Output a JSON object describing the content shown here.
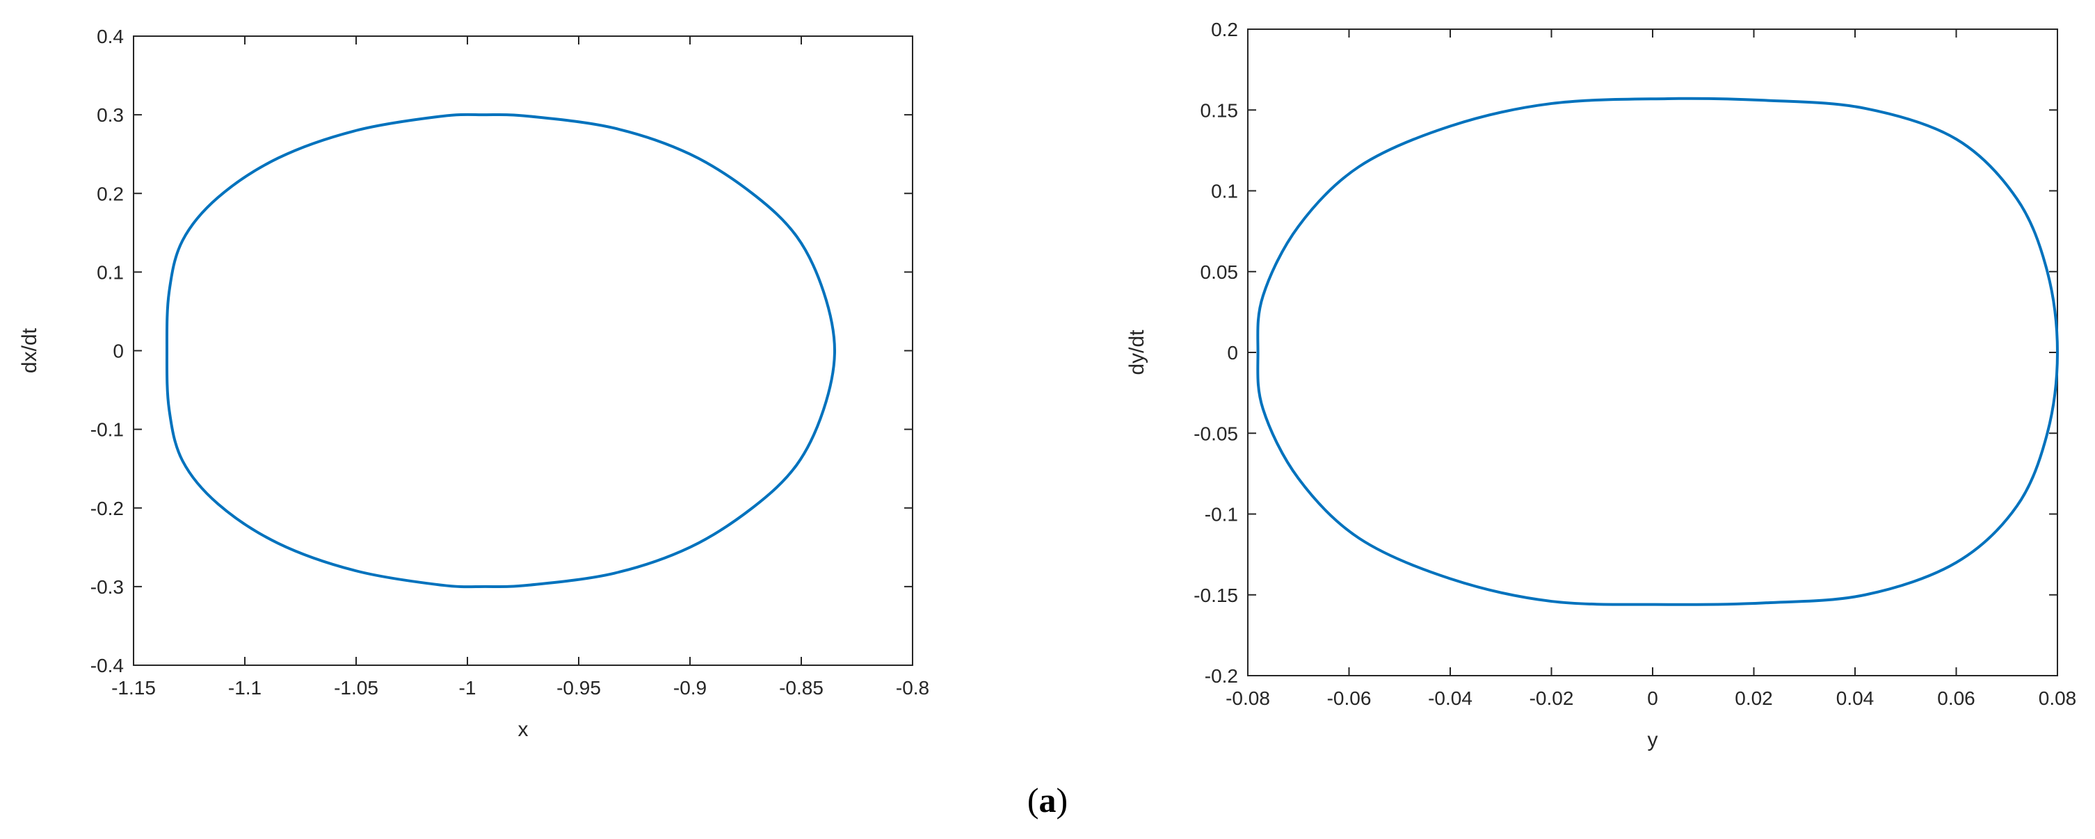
{
  "figure": {
    "caption_open": "(",
    "caption_letter": "a",
    "caption_close": ")"
  },
  "colors": {
    "trajectory": "#0072BD",
    "axes": "#262626",
    "background": "#ffffff"
  },
  "chart_data": [
    {
      "type": "line",
      "title": "",
      "xlabel": "x",
      "ylabel": "dx/dt",
      "xlim": [
        -1.15,
        -0.8
      ],
      "ylim": [
        -0.4,
        0.4
      ],
      "xticks": [
        -1.15,
        -1.1,
        -1.05,
        -1,
        -0.95,
        -0.9,
        -0.85,
        -0.8
      ],
      "xtick_labels": [
        "-1.15",
        "-1.1",
        "-1.05",
        "-1",
        "-0.95",
        "-0.9",
        "-0.85",
        "-0.8"
      ],
      "yticks": [
        0.4,
        0.3,
        0.2,
        0.1,
        0,
        -0.1,
        -0.2,
        -0.3,
        -0.4
      ],
      "ytick_labels": [
        "0.4",
        "0.3",
        "0.2",
        "0.1",
        "0",
        "-0.1",
        "-0.2",
        "-0.3",
        "-0.4"
      ],
      "grid": false,
      "legend": "none",
      "series": [
        {
          "shape": "closed orbit",
          "x": [
            -0.835,
            -0.84,
            -0.852,
            -0.872,
            -0.9,
            -0.934,
            -0.972,
            -0.992,
            -1.012,
            -1.05,
            -1.085,
            -1.112,
            -1.128,
            -1.134,
            -1.135,
            -1.134,
            -1.128,
            -1.112,
            -1.085,
            -1.05,
            -1.012,
            -0.992,
            -0.972,
            -0.934,
            -0.9,
            -0.872,
            -0.852,
            -0.84,
            -0.835
          ],
          "y": [
            0.0,
            0.075,
            0.145,
            0.2,
            0.25,
            0.283,
            0.298,
            0.3,
            0.298,
            0.28,
            0.245,
            0.195,
            0.14,
            0.075,
            0.0,
            -0.075,
            -0.14,
            -0.195,
            -0.245,
            -0.28,
            -0.298,
            -0.3,
            -0.298,
            -0.283,
            -0.25,
            -0.2,
            -0.145,
            -0.075,
            0.0
          ]
        }
      ]
    },
    {
      "type": "line",
      "title": "",
      "xlabel": "y",
      "ylabel": "dy/dt",
      "xlim": [
        -0.08,
        0.08
      ],
      "ylim": [
        -0.2,
        0.2
      ],
      "xticks": [
        -0.08,
        -0.06,
        -0.04,
        -0.02,
        0,
        0.02,
        0.04,
        0.06,
        0.08
      ],
      "xtick_labels": [
        "-0.08",
        "-0.06",
        "-0.04",
        "-0.02",
        "0",
        "0.02",
        "0.04",
        "0.06",
        "0.08"
      ],
      "yticks": [
        0.2,
        0.15,
        0.1,
        0.05,
        0,
        -0.05,
        -0.1,
        -0.15,
        -0.2
      ],
      "ytick_labels": [
        "0.2",
        "0.15",
        "0.1",
        "0.05",
        "0",
        "-0.05",
        "-0.1",
        "-0.15",
        "-0.2"
      ],
      "grid": false,
      "legend": "none",
      "series": [
        {
          "shape": "closed orbit",
          "x": [
            0.08,
            0.078,
            0.072,
            0.06,
            0.042,
            0.022,
            0.003,
            -0.02,
            -0.04,
            -0.058,
            -0.07,
            -0.077,
            -0.078,
            -0.077,
            -0.07,
            -0.058,
            -0.04,
            -0.02,
            0.003,
            0.022,
            0.042,
            0.06,
            0.072,
            0.078,
            0.08
          ],
          "y": [
            0.0,
            0.05,
            0.095,
            0.132,
            0.151,
            0.156,
            0.157,
            0.154,
            0.14,
            0.115,
            0.078,
            0.035,
            0.0,
            -0.035,
            -0.078,
            -0.115,
            -0.14,
            -0.154,
            -0.156,
            -0.155,
            -0.15,
            -0.13,
            -0.095,
            -0.05,
            0.0
          ]
        }
      ]
    }
  ]
}
